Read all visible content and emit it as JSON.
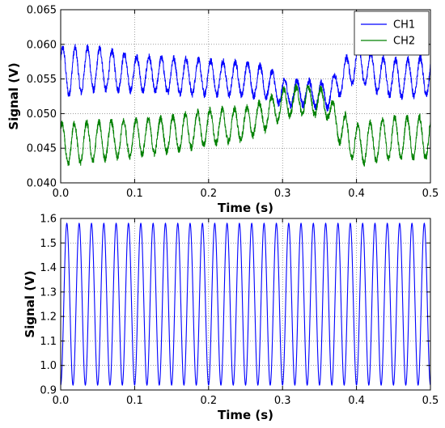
{
  "chart_data": [
    {
      "type": "line",
      "xlabel": "Time (s)",
      "ylabel": "Signal (V)",
      "xlim": [
        0.0,
        0.5
      ],
      "ylim": [
        0.04,
        0.065
      ],
      "xticks": [
        "0.0",
        "0.1",
        "0.2",
        "0.3",
        "0.4",
        "0.5"
      ],
      "yticks": [
        "0.040",
        "0.045",
        "0.050",
        "0.055",
        "0.060",
        "0.065"
      ],
      "grid": true,
      "legend_position": "top-right",
      "frequency_hz": 60,
      "series": [
        {
          "name": "CH1",
          "color": "#0000ff",
          "center_points": [
            [
              0.0,
              0.056
            ],
            [
              0.05,
              0.0565
            ],
            [
              0.1,
              0.0558
            ],
            [
              0.15,
              0.0555
            ],
            [
              0.2,
              0.0552
            ],
            [
              0.25,
              0.055
            ],
            [
              0.28,
              0.0545
            ],
            [
              0.3,
              0.053
            ],
            [
              0.33,
              0.053
            ],
            [
              0.36,
              0.0525
            ],
            [
              0.38,
              0.055
            ],
            [
              0.4,
              0.0575
            ],
            [
              0.43,
              0.0555
            ],
            [
              0.46,
              0.055
            ],
            [
              0.5,
              0.0555
            ]
          ],
          "amplitude_points": [
            [
              0.0,
              0.0035
            ],
            [
              0.1,
              0.0025
            ],
            [
              0.2,
              0.0025
            ],
            [
              0.28,
              0.0022
            ],
            [
              0.3,
              0.0018
            ],
            [
              0.36,
              0.0018
            ],
            [
              0.4,
              0.0025
            ],
            [
              0.5,
              0.0028
            ]
          ]
        },
        {
          "name": "CH2",
          "color": "#008000",
          "center_points": [
            [
              0.0,
              0.0455
            ],
            [
              0.05,
              0.046
            ],
            [
              0.1,
              0.0465
            ],
            [
              0.15,
              0.047
            ],
            [
              0.2,
              0.048
            ],
            [
              0.25,
              0.0485
            ],
            [
              0.28,
              0.05
            ],
            [
              0.3,
              0.0515
            ],
            [
              0.33,
              0.052
            ],
            [
              0.36,
              0.0515
            ],
            [
              0.37,
              0.049
            ],
            [
              0.4,
              0.0455
            ],
            [
              0.45,
              0.0465
            ],
            [
              0.5,
              0.0465
            ]
          ],
          "amplitude_points": [
            [
              0.0,
              0.003
            ],
            [
              0.1,
              0.0025
            ],
            [
              0.2,
              0.0025
            ],
            [
              0.3,
              0.002
            ],
            [
              0.36,
              0.002
            ],
            [
              0.4,
              0.0028
            ],
            [
              0.5,
              0.003
            ]
          ]
        }
      ]
    },
    {
      "type": "line",
      "xlabel": "Time (s)",
      "ylabel": "Signal (V)",
      "xlim": [
        0.0,
        0.5
      ],
      "ylim": [
        0.9,
        1.6
      ],
      "xticks": [
        "0.0",
        "0.1",
        "0.2",
        "0.3",
        "0.4",
        "0.5"
      ],
      "yticks": [
        "0.9",
        "1.0",
        "1.1",
        "1.2",
        "1.3",
        "1.4",
        "1.5",
        "1.6"
      ],
      "grid": true,
      "frequency_hz": 60,
      "series": [
        {
          "color": "#0000ff",
          "offset": 1.25,
          "amplitude": 0.33
        }
      ]
    }
  ]
}
